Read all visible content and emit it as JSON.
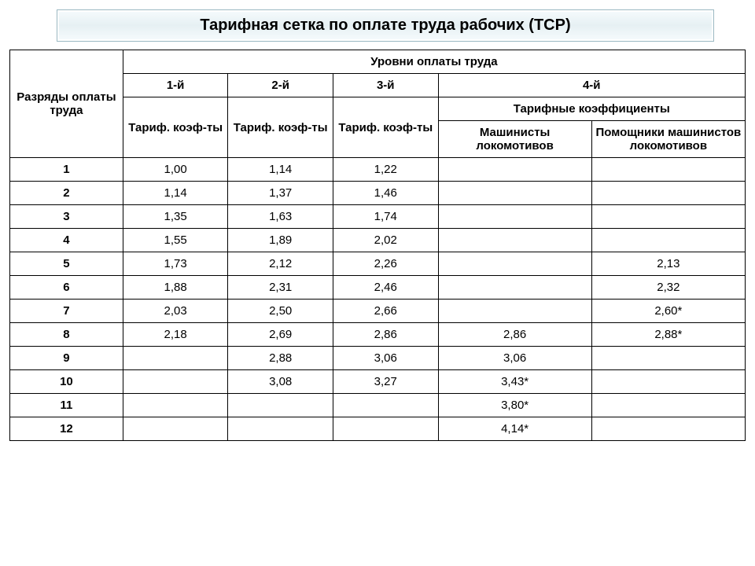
{
  "title": "Тарифная сетка по оплате труда рабочих (ТСР)",
  "headers": {
    "ranks": "Разряды оплаты труда",
    "levels": "Уровни оплаты труда",
    "lvl1": "1-й",
    "lvl2": "2-й",
    "lvl3": "3-й",
    "lvl4": "4-й",
    "coef": "Тариф. коэф-ты",
    "coefs": "Тарифные коэффициенты",
    "drivers": "Машинисты локомотивов",
    "assistants": "Помощники машинистов локомотивов"
  },
  "rows": [
    {
      "rank": "1",
      "c1": "1,00",
      "c2": "1,14",
      "c3": "1,22",
      "c4a": "",
      "c4b": ""
    },
    {
      "rank": "2",
      "c1": "1,14",
      "c2": "1,37",
      "c3": "1,46",
      "c4a": "",
      "c4b": ""
    },
    {
      "rank": "3",
      "c1": "1,35",
      "c2": "1,63",
      "c3": "1,74",
      "c4a": "",
      "c4b": ""
    },
    {
      "rank": "4",
      "c1": "1,55",
      "c2": "1,89",
      "c3": "2,02",
      "c4a": "",
      "c4b": ""
    },
    {
      "rank": "5",
      "c1": "1,73",
      "c2": "2,12",
      "c3": "2,26",
      "c4a": "",
      "c4b": "2,13"
    },
    {
      "rank": "6",
      "c1": "1,88",
      "c2": "2,31",
      "c3": "2,46",
      "c4a": "",
      "c4b": "2,32"
    },
    {
      "rank": "7",
      "c1": "2,03",
      "c2": "2,50",
      "c3": "2,66",
      "c4a": "",
      "c4b": "2,60*"
    },
    {
      "rank": "8",
      "c1": "2,18",
      "c2": "2,69",
      "c3": "2,86",
      "c4a": "2,86",
      "c4b": "2,88*"
    },
    {
      "rank": "9",
      "c1": "",
      "c2": "2,88",
      "c3": "3,06",
      "c4a": "3,06",
      "c4b": ""
    },
    {
      "rank": "10",
      "c1": "",
      "c2": "3,08",
      "c3": "3,27",
      "c4a": "3,43*",
      "c4b": ""
    },
    {
      "rank": "11",
      "c1": "",
      "c2": "",
      "c3": "",
      "c4a": "3,80*",
      "c4b": ""
    },
    {
      "rank": "12",
      "c1": "",
      "c2": "",
      "c3": "",
      "c4a": "4,14*",
      "c4b": ""
    }
  ],
  "style": {
    "title_bg_from": "#f6fbfd",
    "title_bg_to": "#e6f0f3",
    "title_border": "#9bb8c2",
    "border_color": "#000000",
    "header_fontsize": 15,
    "body_fontsize": 15,
    "title_fontsize": 20
  }
}
